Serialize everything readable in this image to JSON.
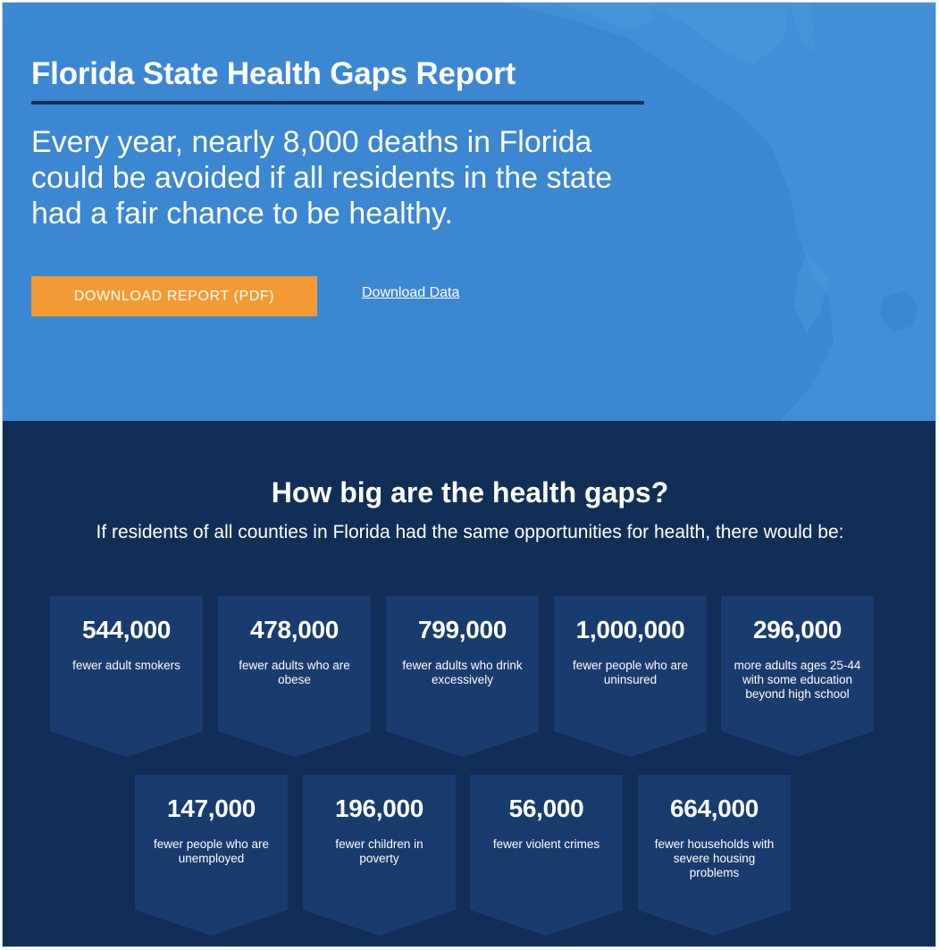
{
  "hero": {
    "title": "Florida State Health Gaps Report",
    "lead": "Every year, nearly 8,000 deaths in Florida could be avoided if all residents in the state had a fair chance to be healthy.",
    "download_report_label": "DOWNLOAD REPORT (PDF)",
    "download_data_label": "Download Data"
  },
  "gaps": {
    "title": "How big are the health gaps?",
    "subtitle": "If residents of all counties in Florida had the same opportunities for health, there would be:",
    "cards": [
      {
        "value": "544,000",
        "label": "fewer adult smokers"
      },
      {
        "value": "478,000",
        "label": "fewer adults who are obese"
      },
      {
        "value": "799,000",
        "label": "fewer adults who drink excessively"
      },
      {
        "value": "1,000,000",
        "label": "fewer people who are uninsured"
      },
      {
        "value": "296,000",
        "label": "more adults ages 25-44 with some education beyond high school"
      },
      {
        "value": "147,000",
        "label": "fewer people who are unemployed"
      },
      {
        "value": "196,000",
        "label": "fewer children in poverty"
      },
      {
        "value": "56,000",
        "label": "fewer violent crimes"
      },
      {
        "value": "664,000",
        "label": "fewer households with severe housing problems"
      }
    ]
  },
  "colors": {
    "hero_bg": "#3b87d2",
    "section_bg": "#112f56",
    "card_bg": "#173c6d",
    "button_bg": "#f39a34"
  },
  "icons": [
    "florida-map-background"
  ]
}
